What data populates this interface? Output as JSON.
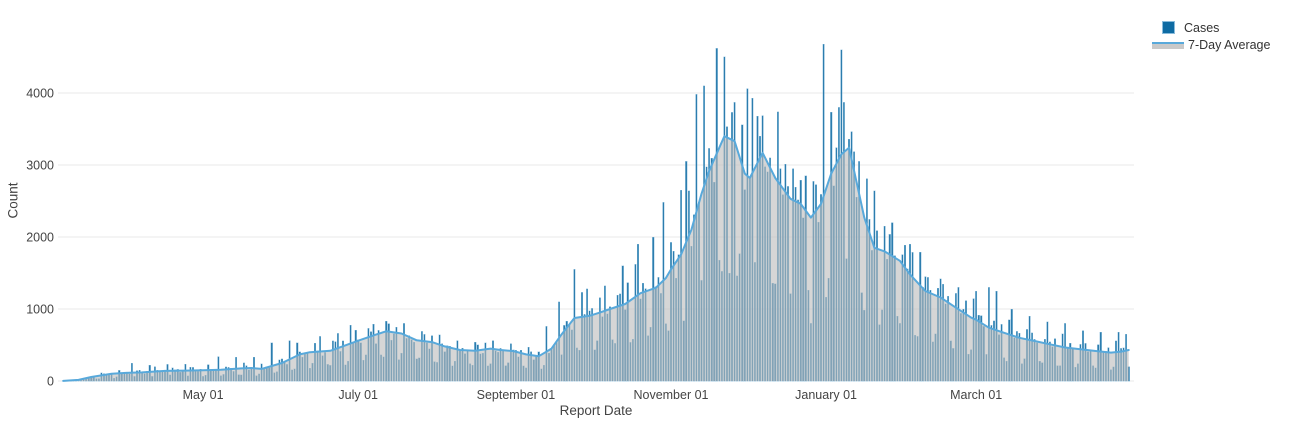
{
  "page": {
    "background": "#ffffff"
  },
  "legend": {
    "items": [
      {
        "label": "Cases",
        "kind": "bar",
        "swatch_fill": "#0e6ba3",
        "swatch_border": "#8abcdc"
      },
      {
        "label": "7-Day Average",
        "kind": "line-area",
        "line_color": "#58a9db",
        "area_fill": "#c9c9c9"
      }
    ]
  },
  "chart_data": {
    "type": "bar",
    "title": "",
    "xlabel": "Report Date",
    "ylabel": "Count",
    "ylim": [
      0,
      4750
    ],
    "yticks": [
      0,
      1000,
      2000,
      3000,
      4000
    ],
    "grid": "horizontal-light-gray",
    "legend_position": "outside-top-right",
    "num_days": 420,
    "xticks": [
      {
        "day": 55,
        "label": "May 01"
      },
      {
        "day": 116,
        "label": "July 01"
      },
      {
        "day": 178,
        "label": "September 01"
      },
      {
        "day": 239,
        "label": "November 01"
      },
      {
        "day": 300,
        "label": "January 01"
      },
      {
        "day": 359,
        "label": "March 01"
      }
    ],
    "series": [
      {
        "name": "Cases",
        "type": "bar",
        "color": "rgba(15,107,163,0.88)",
        "edge_color": "rgba(134,187,221,0.9)"
      },
      {
        "name": "7-Day Average",
        "type": "line+area",
        "line_color": "#58a9db",
        "area_color": "rgba(186,186,186,0.6)"
      }
    ],
    "avg_points": [
      [
        0,
        2
      ],
      [
        6,
        15
      ],
      [
        11,
        55
      ],
      [
        19,
        100
      ],
      [
        26,
        115
      ],
      [
        31,
        120
      ],
      [
        40,
        140
      ],
      [
        48,
        145
      ],
      [
        55,
        150
      ],
      [
        62,
        155
      ],
      [
        70,
        175
      ],
      [
        74,
        180
      ],
      [
        78,
        168
      ],
      [
        86,
        250
      ],
      [
        93,
        370
      ],
      [
        97,
        400
      ],
      [
        105,
        420
      ],
      [
        109,
        470
      ],
      [
        116,
        560
      ],
      [
        123,
        645
      ],
      [
        127,
        690
      ],
      [
        133,
        660
      ],
      [
        139,
        565
      ],
      [
        145,
        540
      ],
      [
        150,
        480
      ],
      [
        156,
        430
      ],
      [
        162,
        420
      ],
      [
        168,
        450
      ],
      [
        172,
        430
      ],
      [
        177,
        415
      ],
      [
        182,
        370
      ],
      [
        187,
        345
      ],
      [
        192,
        450
      ],
      [
        196,
        650
      ],
      [
        201,
        875
      ],
      [
        207,
        905
      ],
      [
        211,
        950
      ],
      [
        215,
        1000
      ],
      [
        221,
        1070
      ],
      [
        227,
        1220
      ],
      [
        233,
        1295
      ],
      [
        237,
        1430
      ],
      [
        239,
        1550
      ],
      [
        243,
        1760
      ],
      [
        247,
        2100
      ],
      [
        251,
        2600
      ],
      [
        254,
        2920
      ],
      [
        258,
        3240
      ],
      [
        260,
        3400
      ],
      [
        264,
        3330
      ],
      [
        268,
        2880
      ],
      [
        270,
        2820
      ],
      [
        275,
        3170
      ],
      [
        280,
        2820
      ],
      [
        286,
        2530
      ],
      [
        290,
        2460
      ],
      [
        294,
        2270
      ],
      [
        298,
        2460
      ],
      [
        302,
        2880
      ],
      [
        306,
        3150
      ],
      [
        309,
        3240
      ],
      [
        311,
        2920
      ],
      [
        315,
        2270
      ],
      [
        319,
        1850
      ],
      [
        323,
        1800
      ],
      [
        329,
        1670
      ],
      [
        333,
        1480
      ],
      [
        339,
        1250
      ],
      [
        345,
        1160
      ],
      [
        351,
        1020
      ],
      [
        357,
        880
      ],
      [
        359,
        850
      ],
      [
        364,
        740
      ],
      [
        370,
        670
      ],
      [
        376,
        600
      ],
      [
        382,
        556
      ],
      [
        388,
        510
      ],
      [
        394,
        465
      ],
      [
        400,
        440
      ],
      [
        406,
        417
      ],
      [
        412,
        395
      ],
      [
        416,
        408
      ],
      [
        419,
        430
      ]
    ],
    "bar_model": {
      "week_pattern": [
        0.52,
        1.28,
        1.1,
        1.02,
        0.98,
        1.06,
        0.48
      ],
      "wave1_amp": 0.12,
      "wave1_freq": 2.13,
      "wave2_amp": 0.07,
      "wave2_freq": 0.91
    },
    "bar_overrides": {
      "27": 250,
      "34": 220,
      "41": 230,
      "48": 235,
      "61": 340,
      "68": 330,
      "75": 330,
      "82": 530,
      "89": 560,
      "101": 620,
      "108": 660,
      "115": 705,
      "122": 790,
      "127": 830,
      "134": 800,
      "141": 690,
      "148": 640,
      "155": 560,
      "162": 540,
      "169": 560,
      "176": 520,
      "183": 470,
      "190": 760,
      "195": 1100,
      "201": 1550,
      "206": 1280,
      "213": 1320,
      "220": 1600,
      "226": 1900,
      "232": 2000,
      "236": 2480,
      "243": 2650,
      "245": 3050,
      "249": 3980,
      "252": 4100,
      "257": 4620,
      "262": 1500,
      "264": 3870,
      "269": 4060,
      "271": 3930,
      "273": 3680,
      "278": 3100,
      "282": 2950,
      "287": 2950,
      "292": 2850,
      "294": 800,
      "299": 4680,
      "305": 3800,
      "306": 4600,
      "307": 3870,
      "313": 3050,
      "319": 2640,
      "326": 2200,
      "333": 1900,
      "339": 1450,
      "345": 1420,
      "352": 1300,
      "359": 1250,
      "364": 1300,
      "367": 1250,
      "373": 1000,
      "380": 900,
      "387": 820,
      "394": 800,
      "401": 700,
      "408": 680,
      "415": 680,
      "418": 650
    }
  }
}
